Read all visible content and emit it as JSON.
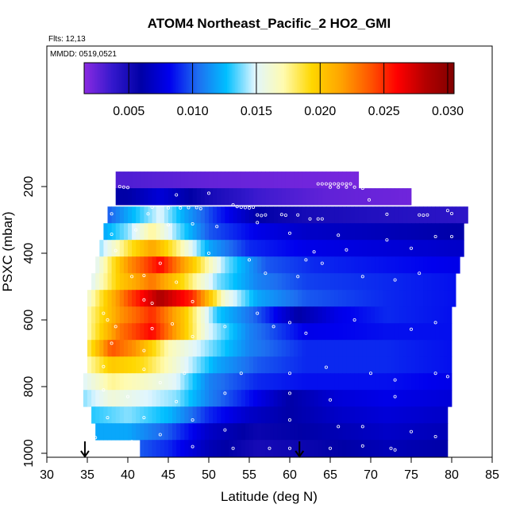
{
  "chart_data": {
    "type": "heatmap",
    "title": "ATOM4 Northeast_Pacific_2 HO2_GMI",
    "info_lines": [
      "Flts: 12,13",
      "MMDD: 0519,0521"
    ],
    "xlabel": "Latitude (deg N)",
    "ylabel": "PSXC (mbar)",
    "xlim": [
      30,
      85
    ],
    "ylim": [
      1000,
      0
    ],
    "x_ticks": [
      "30",
      "35",
      "40",
      "45",
      "50",
      "55",
      "60",
      "65",
      "70",
      "75",
      "80",
      "85"
    ],
    "y_ticks": [
      "200",
      "400",
      "600",
      "800",
      "1000"
    ],
    "colorbar": {
      "range": [
        0.0015,
        0.0305
      ],
      "tick_values": [
        0.005,
        0.01,
        0.015,
        0.02,
        0.025,
        0.03
      ],
      "tick_labels": [
        "0.005",
        "0.010",
        "0.015",
        "0.020",
        "0.025",
        "0.030"
      ],
      "colors": [
        "#8b2be2",
        "#3318cc",
        "#0000a6",
        "#0000ee",
        "#1e6ef0",
        "#00bfff",
        "#e0f6ff",
        "#fffbb0",
        "#ffd700",
        "#ffa500",
        "#ff5a00",
        "#ff0000",
        "#b30000",
        "#800000"
      ]
    },
    "layers": [
      {
        "p": 180,
        "lat0": 38.5,
        "lat1": 68.5,
        "values": [
          [
            40,
            0.003
          ],
          [
            50,
            0.0025
          ],
          [
            60,
            0.0022
          ],
          [
            68.5,
            0.002
          ]
        ]
      },
      {
        "p": 230,
        "lat0": 38.5,
        "lat1": 75.0,
        "values": [
          [
            40,
            0.006
          ],
          [
            44,
            0.0075
          ],
          [
            50,
            0.005
          ],
          [
            56,
            0.0035
          ],
          [
            64,
            0.0026
          ],
          [
            75,
            0.0022
          ]
        ]
      },
      {
        "p": 285,
        "lat0": 37.5,
        "lat1": 82.0,
        "values": [
          [
            37.5,
            0.01
          ],
          [
            40,
            0.012
          ],
          [
            44,
            0.015
          ],
          [
            47,
            0.012
          ],
          [
            51,
            0.009
          ],
          [
            56,
            0.006
          ],
          [
            62,
            0.005
          ],
          [
            70,
            0.0045
          ],
          [
            82,
            0.004
          ]
        ]
      },
      {
        "p": 335,
        "lat0": 37.0,
        "lat1": 81.5,
        "values": [
          [
            37,
            0.012
          ],
          [
            40,
            0.014
          ],
          [
            43,
            0.0175
          ],
          [
            46,
            0.014
          ],
          [
            50,
            0.01
          ],
          [
            56,
            0.008
          ],
          [
            62,
            0.007
          ],
          [
            72,
            0.0065
          ],
          [
            81.5,
            0.006
          ]
        ]
      },
      {
        "p": 385,
        "lat0": 36.5,
        "lat1": 81.5,
        "values": [
          [
            36.5,
            0.014
          ],
          [
            40,
            0.0185
          ],
          [
            43,
            0.0215
          ],
          [
            46,
            0.018
          ],
          [
            50,
            0.012
          ],
          [
            55,
            0.009
          ],
          [
            62,
            0.008
          ],
          [
            72,
            0.0075
          ],
          [
            81.5,
            0.007
          ]
        ]
      },
      {
        "p": 435,
        "lat0": 36.0,
        "lat1": 81.0,
        "values": [
          [
            36,
            0.015
          ],
          [
            40,
            0.022
          ],
          [
            44,
            0.026
          ],
          [
            48,
            0.02
          ],
          [
            52,
            0.014
          ],
          [
            57,
            0.01
          ],
          [
            63,
            0.009
          ],
          [
            72,
            0.0085
          ],
          [
            81,
            0.008
          ]
        ]
      },
      {
        "p": 485,
        "lat0": 35.5,
        "lat1": 80.5,
        "values": [
          [
            35.5,
            0.015
          ],
          [
            39,
            0.02
          ],
          [
            43,
            0.023
          ],
          [
            47,
            0.019
          ],
          [
            51,
            0.014
          ],
          [
            56,
            0.011
          ],
          [
            62,
            0.0095
          ],
          [
            72,
            0.009
          ],
          [
            80.5,
            0.0085
          ]
        ]
      },
      {
        "p": 535,
        "lat0": 35.0,
        "lat1": 80.5,
        "values": [
          [
            35,
            0.016
          ],
          [
            40,
            0.024
          ],
          [
            44,
            0.0285
          ],
          [
            48,
            0.025
          ],
          [
            52,
            0.016
          ],
          [
            56,
            0.012
          ],
          [
            62,
            0.01
          ],
          [
            72,
            0.009
          ],
          [
            80.5,
            0.0085
          ]
        ]
      },
      {
        "p": 585,
        "lat0": 35.0,
        "lat1": 80.0,
        "values": [
          [
            35,
            0.017
          ],
          [
            39,
            0.022
          ],
          [
            43,
            0.025
          ],
          [
            47,
            0.02
          ],
          [
            51,
            0.013
          ],
          [
            56,
            0.01
          ],
          [
            61,
            0.006
          ],
          [
            66,
            0.008
          ],
          [
            72,
            0.009
          ],
          [
            80,
            0.0085
          ]
        ]
      },
      {
        "p": 635,
        "lat0": 35.0,
        "lat1": 80.0,
        "values": [
          [
            35,
            0.017
          ],
          [
            39,
            0.023
          ],
          [
            43,
            0.026
          ],
          [
            47,
            0.02
          ],
          [
            50,
            0.015
          ],
          [
            55,
            0.011
          ],
          [
            62,
            0.008
          ],
          [
            72,
            0.0085
          ],
          [
            80,
            0.0085
          ]
        ]
      },
      {
        "p": 685,
        "lat0": 35.0,
        "lat1": 80.0,
        "values": [
          [
            35,
            0.018
          ],
          [
            38,
            0.024
          ],
          [
            41,
            0.022
          ],
          [
            45,
            0.017
          ],
          [
            50,
            0.014
          ],
          [
            55,
            0.011
          ],
          [
            62,
            0.009
          ],
          [
            72,
            0.009
          ],
          [
            80,
            0.0085
          ]
        ]
      },
      {
        "p": 735,
        "lat0": 35.0,
        "lat1": 80.0,
        "values": [
          [
            35,
            0.017
          ],
          [
            38,
            0.02
          ],
          [
            42,
            0.019
          ],
          [
            46,
            0.016
          ],
          [
            51,
            0.012
          ],
          [
            56,
            0.01
          ],
          [
            62,
            0.009
          ],
          [
            72,
            0.009
          ],
          [
            80,
            0.0085
          ]
        ]
      },
      {
        "p": 785,
        "lat0": 34.5,
        "lat1": 80.0,
        "values": [
          [
            34.5,
            0.015
          ],
          [
            38,
            0.0175
          ],
          [
            42,
            0.0165
          ],
          [
            46,
            0.015
          ],
          [
            50,
            0.011
          ],
          [
            56,
            0.009
          ],
          [
            62,
            0.0085
          ],
          [
            72,
            0.0085
          ],
          [
            80,
            0.008
          ]
        ]
      },
      {
        "p": 835,
        "lat0": 34.5,
        "lat1": 80.0,
        "values": [
          [
            34.5,
            0.014
          ],
          [
            38,
            0.016
          ],
          [
            42,
            0.015
          ],
          [
            46,
            0.014
          ],
          [
            50,
            0.011
          ],
          [
            55,
            0.0085
          ],
          [
            60,
            0.006
          ],
          [
            66,
            0.0075
          ],
          [
            72,
            0.008
          ],
          [
            80,
            0.0075
          ]
        ]
      },
      {
        "p": 885,
        "lat0": 35.5,
        "lat1": 79.5,
        "values": [
          [
            35.5,
            0.013
          ],
          [
            40,
            0.014
          ],
          [
            45,
            0.0125
          ],
          [
            50,
            0.009
          ],
          [
            55,
            0.007
          ],
          [
            60,
            0.006
          ],
          [
            66,
            0.007
          ],
          [
            72,
            0.0075
          ],
          [
            79.5,
            0.007
          ]
        ]
      },
      {
        "p": 935,
        "lat0": 36.0,
        "lat1": 79.5,
        "values": [
          [
            36,
            0.012
          ],
          [
            40,
            0.012
          ],
          [
            45,
            0.01
          ],
          [
            50,
            0.007
          ],
          [
            56,
            0.0055
          ],
          [
            62,
            0.006
          ],
          [
            72,
            0.007
          ],
          [
            79.5,
            0.0065
          ]
        ]
      },
      {
        "p": 985,
        "lat0": 41.5,
        "lat1": 79.5,
        "values": [
          [
            41.5,
            0.01
          ],
          [
            45,
            0.009
          ],
          [
            50,
            0.0065
          ],
          [
            56,
            0.005
          ],
          [
            62,
            0.0055
          ],
          [
            72,
            0.0065
          ],
          [
            79.5,
            0.006
          ]
        ]
      }
    ],
    "markers": [
      {
        "lat": 34.7,
        "p": 985
      },
      {
        "lat": 61.2,
        "p": 985
      }
    ],
    "sample_points": [
      [
        39.0,
        200
      ],
      [
        39.5,
        202
      ],
      [
        40.0,
        203
      ],
      [
        63.5,
        192
      ],
      [
        64.0,
        192
      ],
      [
        64.5,
        192
      ],
      [
        65.0,
        192
      ],
      [
        65.5,
        192
      ],
      [
        66.0,
        192
      ],
      [
        66.5,
        192
      ],
      [
        67.0,
        192
      ],
      [
        67.5,
        192
      ],
      [
        65.0,
        202
      ],
      [
        66.0,
        202
      ],
      [
        67.0,
        202
      ],
      [
        68.0,
        202
      ],
      [
        69.0,
        205
      ],
      [
        46.0,
        225
      ],
      [
        50.0,
        220
      ],
      [
        69.8,
        240
      ],
      [
        53.0,
        255
      ],
      [
        53.5,
        260
      ],
      [
        54.0,
        262
      ],
      [
        54.5,
        263
      ],
      [
        55.0,
        264
      ],
      [
        55.5,
        262
      ],
      [
        38.0,
        282
      ],
      [
        42.5,
        282
      ],
      [
        45.0,
        264
      ],
      [
        46.5,
        264
      ],
      [
        47.5,
        263
      ],
      [
        48.5,
        263
      ],
      [
        49.0,
        266
      ],
      [
        43.0,
        262
      ],
      [
        56.0,
        285
      ],
      [
        56.5,
        287
      ],
      [
        57.0,
        285
      ],
      [
        59.0,
        284
      ],
      [
        59.5,
        286
      ],
      [
        61.0,
        285
      ],
      [
        72.0,
        283
      ],
      [
        76.0,
        285
      ],
      [
        76.5,
        286
      ],
      [
        77.0,
        285
      ],
      [
        80.0,
        281
      ],
      [
        79.5,
        272
      ],
      [
        38.0,
        343
      ],
      [
        41.0,
        330
      ],
      [
        45.0,
        315
      ],
      [
        48.0,
        312
      ],
      [
        51.0,
        320
      ],
      [
        56.0,
        308
      ],
      [
        62.5,
        297
      ],
      [
        63.5,
        297
      ],
      [
        64.0,
        297
      ],
      [
        60.0,
        340
      ],
      [
        66.0,
        346
      ],
      [
        63.0,
        396
      ],
      [
        67.0,
        390
      ],
      [
        72.0,
        360
      ],
      [
        75.0,
        385
      ],
      [
        78.0,
        350
      ],
      [
        80.0,
        350
      ],
      [
        62.0,
        420
      ],
      [
        38.5,
        392
      ],
      [
        44.0,
        430
      ],
      [
        46.0,
        487
      ],
      [
        40.5,
        470
      ],
      [
        42.0,
        467
      ],
      [
        43.0,
        550
      ],
      [
        42.0,
        540
      ],
      [
        48.0,
        545
      ],
      [
        50.0,
        400
      ],
      [
        55.0,
        420
      ],
      [
        57.0,
        460
      ],
      [
        61.0,
        470
      ],
      [
        64.0,
        430
      ],
      [
        69.0,
        470
      ],
      [
        73.0,
        480
      ],
      [
        76.0,
        460
      ],
      [
        37.0,
        580
      ],
      [
        37.5,
        600
      ],
      [
        38.5,
        620
      ],
      [
        43.0,
        626
      ],
      [
        45.5,
        612
      ],
      [
        48.0,
        650
      ],
      [
        52.0,
        620
      ],
      [
        56.0,
        580
      ],
      [
        58.0,
        620
      ],
      [
        60.0,
        608
      ],
      [
        62.0,
        640
      ],
      [
        68.0,
        600
      ],
      [
        75.0,
        628
      ],
      [
        78.0,
        608
      ],
      [
        38.0,
        670
      ],
      [
        42.0,
        692
      ],
      [
        37.0,
        740
      ],
      [
        42.0,
        748
      ],
      [
        44.0,
        788
      ],
      [
        47.0,
        760
      ],
      [
        54.0,
        760
      ],
      [
        60.0,
        760
      ],
      [
        64.5,
        742
      ],
      [
        70.0,
        760
      ],
      [
        73.0,
        780
      ],
      [
        78.0,
        760
      ],
      [
        79.5,
        770
      ],
      [
        37.0,
        810
      ],
      [
        40.0,
        830
      ],
      [
        46.0,
        845
      ],
      [
        52.0,
        820
      ],
      [
        60.0,
        820
      ],
      [
        65.0,
        840
      ],
      [
        73.0,
        830
      ],
      [
        37.5,
        893
      ],
      [
        42.0,
        893
      ],
      [
        48.0,
        900
      ],
      [
        52.0,
        930
      ],
      [
        60.0,
        900
      ],
      [
        66.0,
        920
      ],
      [
        69.0,
        920
      ],
      [
        75.0,
        935
      ],
      [
        36.0,
        953
      ],
      [
        40.5,
        965
      ],
      [
        44.0,
        944
      ],
      [
        48.0,
        980
      ],
      [
        53.0,
        985
      ],
      [
        57.5,
        985
      ],
      [
        60.0,
        985
      ],
      [
        65.0,
        985
      ],
      [
        69.0,
        978
      ],
      [
        72.5,
        985
      ],
      [
        73.0,
        990
      ],
      [
        78.0,
        950
      ]
    ]
  }
}
